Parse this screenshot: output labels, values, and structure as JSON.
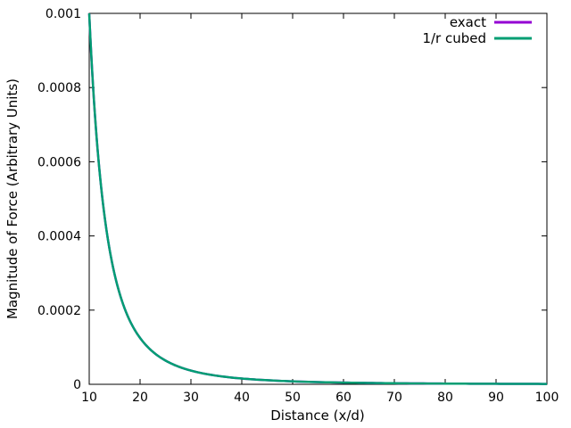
{
  "chart_data": {
    "type": "line",
    "xlabel": "Distance (x/d)",
    "ylabel": "Magnitude of Force (Arbitrary Units)",
    "xlim": [
      10,
      100
    ],
    "ylim": [
      0,
      0.001
    ],
    "x_ticks": [
      10,
      20,
      30,
      40,
      50,
      60,
      70,
      80,
      90,
      100
    ],
    "x_tick_labels": [
      "10",
      "20",
      "30",
      "40",
      "50",
      "60",
      "70",
      "80",
      "90",
      "100"
    ],
    "y_ticks": [
      0,
      0.0002,
      0.0004,
      0.0006,
      0.0008,
      0.001
    ],
    "y_tick_labels": [
      "0",
      "0.0002",
      "0.0004",
      "0.0006",
      "0.0008",
      "0.001"
    ],
    "grid": false,
    "legend_position": "top-right",
    "x": [
      10,
      11,
      12,
      13,
      14,
      15,
      16,
      18,
      20,
      22,
      25,
      28,
      30,
      35,
      40,
      45,
      50,
      60,
      70,
      80,
      90,
      100
    ],
    "series": [
      {
        "name": "exact",
        "color": "#9400d3",
        "values": [
          0.001,
          0.000751,
          0.000579,
          0.000455,
          0.000364,
          0.000296,
          0.000244,
          0.000171,
          0.000125,
          9.39e-05,
          6.4e-05,
          4.55e-05,
          3.7e-05,
          2.33e-05,
          1.56e-05,
          1.1e-05,
          8e-06,
          4.63e-06,
          2.92e-06,
          1.95e-06,
          1.37e-06,
          1e-06
        ]
      },
      {
        "name": "1/r cubed",
        "color": "#009e73",
        "values": [
          0.001,
          0.000751,
          0.000579,
          0.000455,
          0.000364,
          0.000296,
          0.000244,
          0.000171,
          0.000125,
          9.39e-05,
          6.4e-05,
          4.55e-05,
          3.7e-05,
          2.33e-05,
          1.56e-05,
          1.1e-05,
          8e-06,
          4.63e-06,
          2.92e-06,
          1.95e-06,
          1.37e-06,
          1e-06
        ]
      }
    ]
  }
}
